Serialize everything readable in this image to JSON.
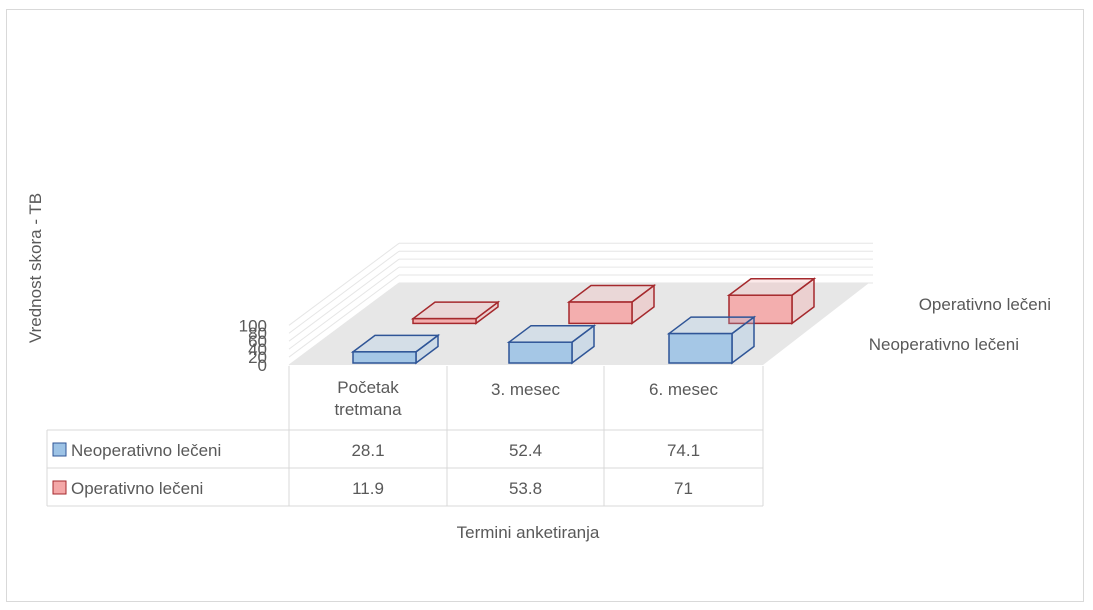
{
  "chart_data": {
    "type": "bar",
    "view": "3d-clustered-column-with-data-table",
    "categories": [
      "Početak tretmana",
      "3. mesec",
      "6. mesec"
    ],
    "series": [
      {
        "name": "Neoperativno lečeni",
        "values": [
          28.1,
          52.4,
          74.1
        ],
        "color": "#9dc3e6",
        "edge_color": "#2f5597"
      },
      {
        "name": "Operativno lečeni",
        "values": [
          11.9,
          53.8,
          71
        ],
        "color": "#f4a7a7",
        "edge_color": "#a5292d"
      }
    ],
    "ylim": [
      0,
      100
    ],
    "yticks": [
      "0",
      "20",
      "40",
      "60",
      "80",
      "100"
    ],
    "xlabel": "Termini anketiranja",
    "ylabel": "Vrednost skora - TB",
    "table": {
      "rows": [
        {
          "label": "Neoperativno lečeni",
          "values": [
            "28.1",
            "52.4",
            "74.1"
          ]
        },
        {
          "label": "Operativno lečeni",
          "values": [
            "11.9",
            "53.8",
            "71"
          ]
        }
      ]
    },
    "grid": true
  }
}
